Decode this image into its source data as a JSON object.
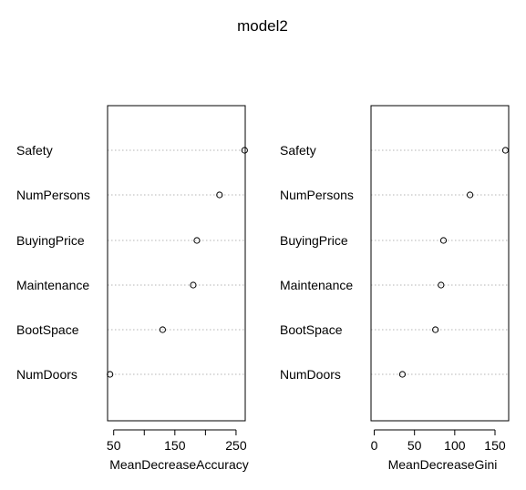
{
  "chart_data": {
    "type": "dotchart",
    "title": "model2",
    "categories": [
      "Safety",
      "NumPersons",
      "BuyingPrice",
      "Maintenance",
      "BootSpace",
      "NumDoors"
    ],
    "panels": [
      {
        "xlabel": "MeanDecreaseAccuracy",
        "ticks": [
          50,
          100,
          150,
          200,
          250
        ],
        "tick_labels": [
          "50",
          "",
          "150",
          "",
          "250"
        ],
        "xlim": [
          40,
          265
        ],
        "values": [
          264,
          223,
          186,
          180,
          130,
          44
        ]
      },
      {
        "xlabel": "MeanDecreaseGini",
        "ticks": [
          0,
          50,
          100,
          150
        ],
        "tick_labels": [
          "0",
          "50",
          "100",
          "150"
        ],
        "xlim": [
          -4,
          167
        ],
        "values": [
          163,
          119,
          86,
          83,
          76,
          35
        ]
      }
    ]
  }
}
